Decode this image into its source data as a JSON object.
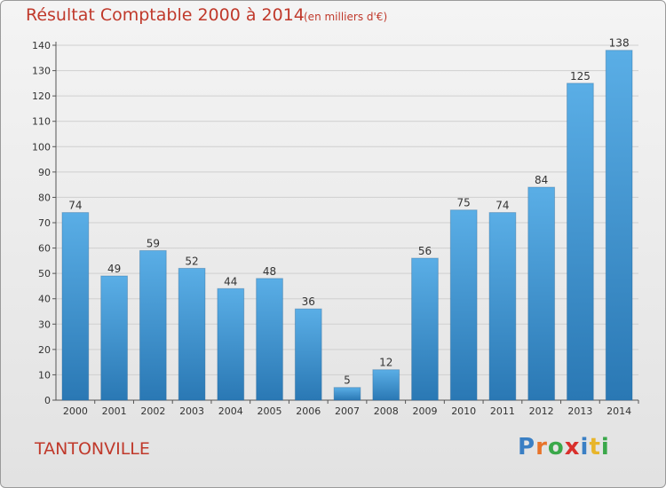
{
  "chart_data": {
    "type": "bar",
    "title": "Résultat Comptable 2000 à 2014",
    "subtitle": "(en milliers d'€)",
    "categories": [
      "2000",
      "2001",
      "2002",
      "2003",
      "2004",
      "2005",
      "2006",
      "2007",
      "2008",
      "2009",
      "2010",
      "2011",
      "2012",
      "2013",
      "2014"
    ],
    "values": [
      74,
      49,
      59,
      52,
      44,
      48,
      36,
      5,
      12,
      56,
      75,
      74,
      84,
      125,
      138
    ],
    "ylim": [
      0,
      140
    ],
    "yticks": [
      0,
      10,
      20,
      30,
      40,
      50,
      60,
      70,
      80,
      90,
      100,
      110,
      120,
      130,
      140
    ],
    "grid": true,
    "bar_color_top": "#5aaee6",
    "bar_color_bottom": "#2a78b4"
  },
  "footer": {
    "town": "TANTONVILLE",
    "brand_letters": [
      {
        "ch": "P",
        "color": "#3a7fc4"
      },
      {
        "ch": "r",
        "color": "#e8742a"
      },
      {
        "ch": "o",
        "color": "#3aa84a"
      },
      {
        "ch": "x",
        "color": "#d9302c"
      },
      {
        "ch": "i",
        "color": "#3a7fc4"
      },
      {
        "ch": "t",
        "color": "#e8b52a"
      },
      {
        "ch": "i",
        "color": "#3aa84a"
      }
    ]
  }
}
